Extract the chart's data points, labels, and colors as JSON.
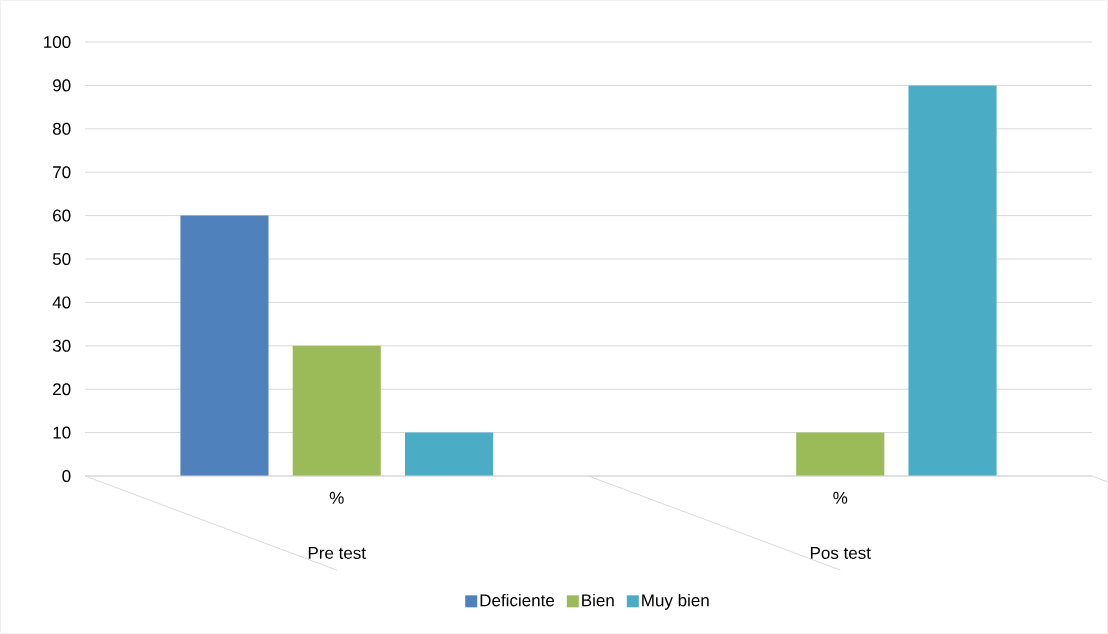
{
  "chart_data": {
    "type": "bar",
    "categories": [
      "%",
      "%"
    ],
    "series": [
      {
        "name": "Deficiente",
        "color": "#4f81bd",
        "values": [
          60,
          0
        ]
      },
      {
        "name": "Bien",
        "color": "#9bbb59",
        "values": [
          30,
          10
        ]
      },
      {
        "name": "Muy bien",
        "color": "#4bacc6",
        "values": [
          10,
          90
        ]
      }
    ],
    "annotations": [
      "Pre test",
      "Pos test"
    ],
    "ylim": [
      0,
      100
    ],
    "yticks": [
      0,
      10,
      20,
      30,
      40,
      50,
      60,
      70,
      80,
      90,
      100
    ],
    "grid": "y",
    "legend": "bottom"
  }
}
